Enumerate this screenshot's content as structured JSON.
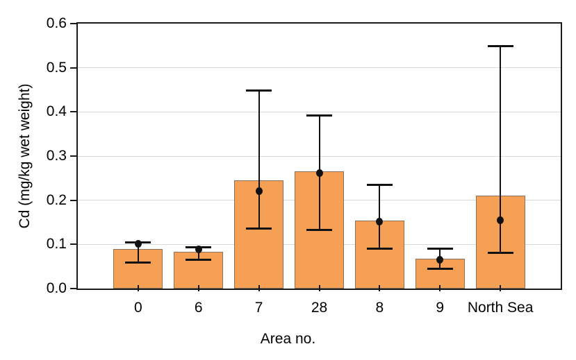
{
  "chart_data": {
    "type": "bar",
    "title": "",
    "xlabel": "Area no.",
    "ylabel": "Cd (mg/kg wet weight)",
    "categories": [
      "0",
      "6",
      "7",
      "28",
      "8",
      "9",
      "North Sea"
    ],
    "series": [
      {
        "name": "bar_height",
        "values": [
          0.09,
          0.084,
          0.245,
          0.265,
          0.154,
          0.067,
          0.21
        ]
      },
      {
        "name": "dot_marker",
        "values": [
          0.102,
          0.088,
          0.22,
          0.262,
          0.151,
          0.065,
          0.155
        ]
      },
      {
        "name": "whisker_low",
        "values": [
          0.06,
          0.066,
          0.137,
          0.133,
          0.091,
          0.046,
          0.082
        ]
      },
      {
        "name": "whisker_high",
        "values": [
          0.105,
          0.094,
          0.45,
          0.392,
          0.236,
          0.091,
          0.549
        ]
      }
    ],
    "ylim": [
      0,
      0.6
    ],
    "yticks": [
      0.0,
      0.1,
      0.2,
      0.3,
      0.4,
      0.5,
      0.6
    ],
    "grid": true,
    "legend": "none",
    "colors": {
      "bar_fill": "#F5A054",
      "bar_border": "#8B6F56",
      "error_bar": "#111111",
      "gridline": "#d9d9d9",
      "axis": "#1a1a1a",
      "background": "#ffffff"
    }
  }
}
